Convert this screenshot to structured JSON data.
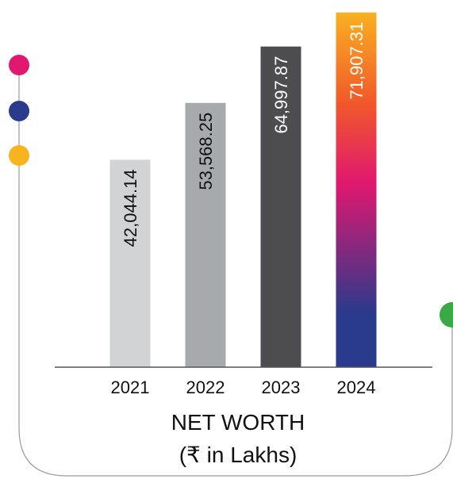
{
  "chart_data": {
    "type": "bar",
    "title": "NET WORTH",
    "subtitle": "(₹ in Lakhs)",
    "categories": [
      "2021",
      "2022",
      "2023",
      "2024"
    ],
    "values": [
      42044.14,
      53568.25,
      64997.87,
      71907.31
    ],
    "value_labels": [
      "42,044.14",
      "53,568.25",
      "64,997.87",
      "71,907.31"
    ],
    "bar_colors": [
      "#d1d3d4",
      "#a7a9ac",
      "#4d4d4f",
      "gradient"
    ],
    "gradient_colors": [
      "#f9b122",
      "#f15a29",
      "#e0186f",
      "#2a3a8c"
    ],
    "label_colors": [
      "#111111",
      "#111111",
      "#ffffff",
      "#ffffff"
    ],
    "ylim": [
      0,
      72500
    ],
    "grid": false,
    "decor_dot_colors": [
      "#e0186f",
      "#2a3a8c",
      "#f7b41f",
      "#3aaa49"
    ]
  }
}
